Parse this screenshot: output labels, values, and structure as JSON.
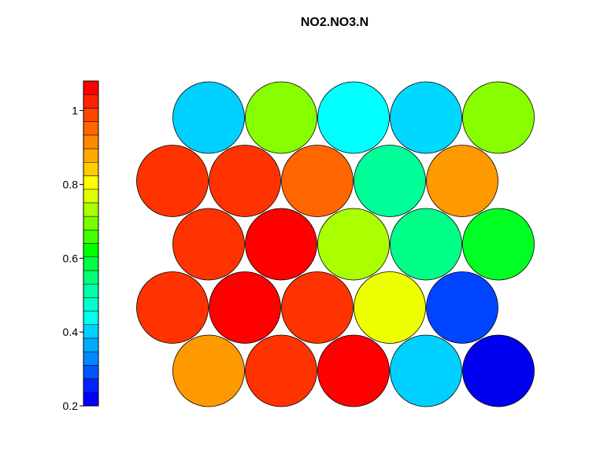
{
  "chart_data": {
    "type": "heatmap",
    "title": "NO2.NO3.N",
    "grid": "hexagonal",
    "colorbar": {
      "ticks": [
        1,
        0.8,
        0.6,
        0.4,
        0.2
      ],
      "tick_labels": [
        "1",
        "0.8",
        "0.6",
        "0.4",
        "0.2"
      ],
      "range": [
        0.2,
        1.08
      ],
      "colors": [
        "#0000ff",
        "#0022ff",
        "#0055ff",
        "#0088ff",
        "#00aaff",
        "#00d0ff",
        "#00ffee",
        "#00ffcc",
        "#00ffaa",
        "#00ff77",
        "#00ff44",
        "#00ff00",
        "#44ff00",
        "#77ff00",
        "#aaff00",
        "#ddff00",
        "#ffff00",
        "#ffcc00",
        "#ffaa00",
        "#ff8800",
        "#ff6600",
        "#ff4400",
        "#ff2200",
        "#ff0000"
      ]
    },
    "rows": [
      {
        "values": [
          0.41,
          0.75,
          0.49,
          0.42,
          0.75
        ],
        "colors": [
          "#00d0ff",
          "#88ff00",
          "#00ffff",
          "#00d8ff",
          "#88ff00"
        ]
      },
      {
        "values": [
          1.02,
          1.02,
          0.96,
          0.57,
          0.91
        ],
        "colors": [
          "#ff3300",
          "#ff3300",
          "#ff6600",
          "#00ff99",
          "#ff9900"
        ]
      },
      {
        "values": [
          1.02,
          1.06,
          0.79,
          0.58,
          0.66
        ],
        "colors": [
          "#ff3300",
          "#ff0000",
          "#aaff00",
          "#00ff88",
          "#00ff22"
        ]
      },
      {
        "values": [
          1.02,
          1.06,
          1.02,
          0.84,
          0.28
        ],
        "colors": [
          "#ff3300",
          "#ff0000",
          "#ff3300",
          "#eeff00",
          "#0044ff"
        ]
      },
      {
        "values": [
          0.91,
          1.02,
          1.06,
          0.41,
          0.24
        ],
        "colors": [
          "#ff9900",
          "#ff3300",
          "#ff0000",
          "#00d0ff",
          "#0000ee"
        ]
      }
    ]
  }
}
